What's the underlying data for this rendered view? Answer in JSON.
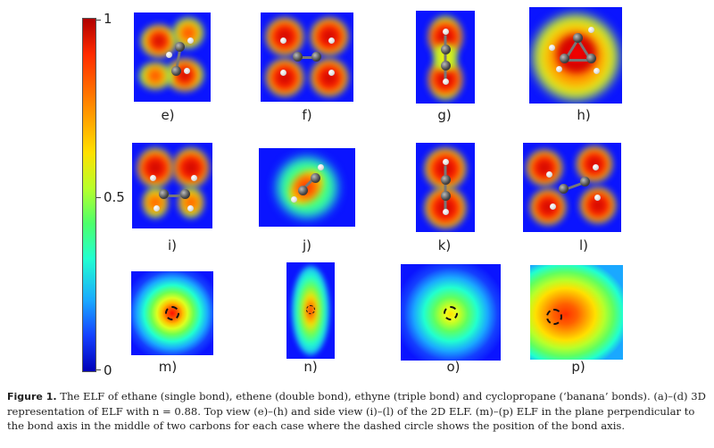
{
  "colorbar": {
    "ticks": [
      "1",
      "0.5",
      "0"
    ],
    "colors": [
      "#b00000",
      "#ff2a00",
      "#ff8c00",
      "#ffe000",
      "#4dff6a",
      "#21ffd0",
      "#1aa8ff",
      "#1440ff",
      "#0000b8"
    ]
  },
  "panels": {
    "row1": [
      "e)",
      "f)",
      "g)",
      "h)"
    ],
    "row2": [
      "i)",
      "j)",
      "k)",
      "l)"
    ],
    "row3": [
      "m)",
      "n)",
      "o)",
      "p)"
    ]
  },
  "caption": {
    "lead": "Figure 1.",
    "text": "The ELF of ethane (single bond), ethene (double bond), ethyne (triple bond) and cyclopropane (‘banana’ bonds). (a)–(d) 3D representation of ELF with n = 0.88. Top view (e)–(h) and side view (i)–(l) of the 2D ELF. (m)–(p) ELF in the plane perpendicular to the bond axis in the middle of two carbons for each case where the dashed circle shows the position of the bond axis."
  }
}
